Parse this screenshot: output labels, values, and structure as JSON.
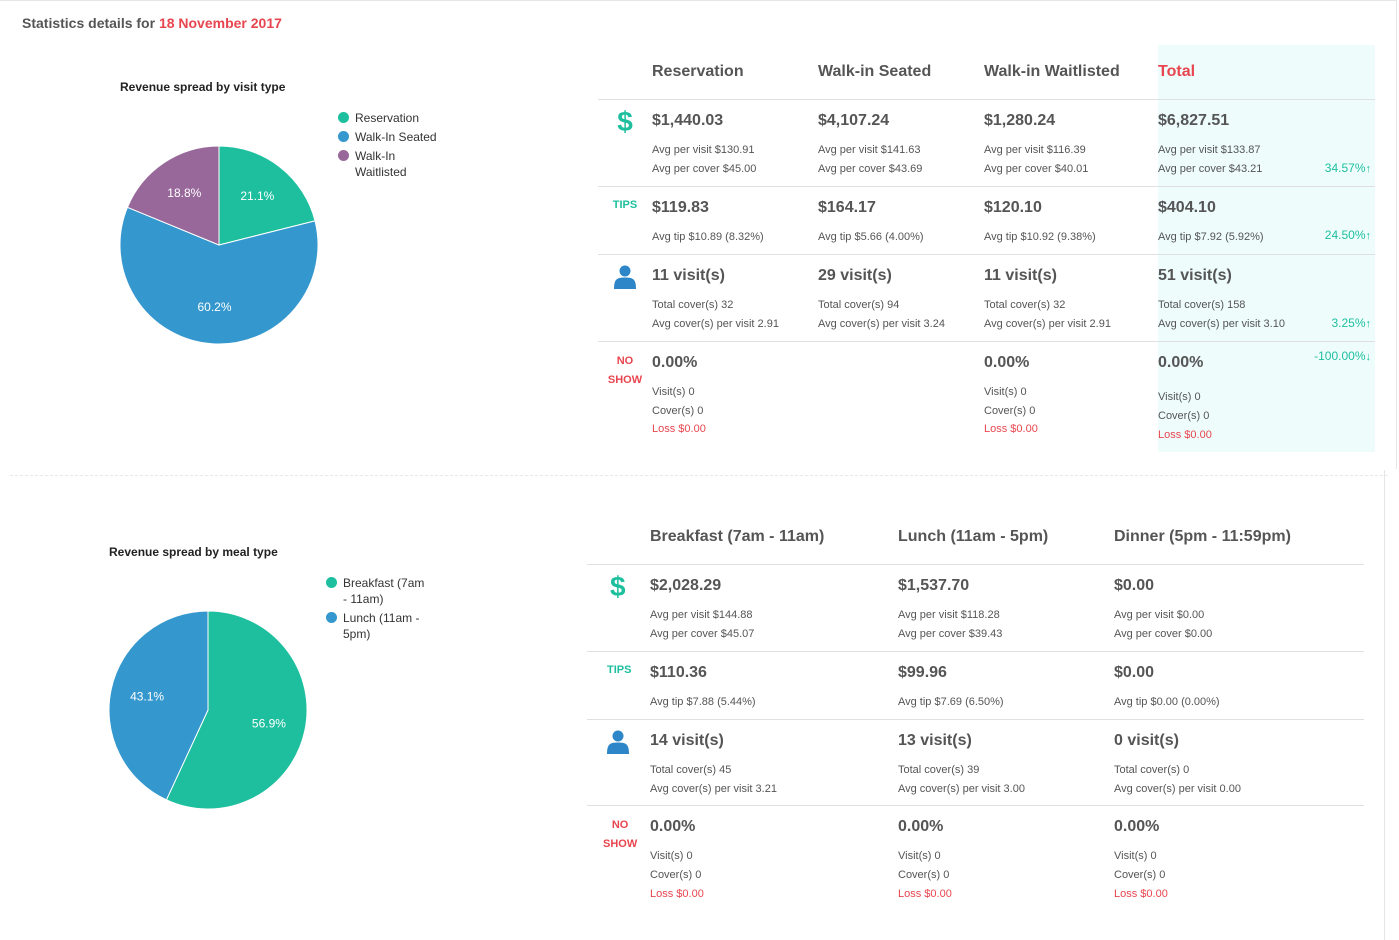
{
  "header": {
    "title_prefix": "Statistics details for",
    "date": "18 November 2017"
  },
  "colors": {
    "teal": "#1dbf9e",
    "blue": "#3497cd",
    "purple": "#98689b",
    "red": "#e8464f",
    "total_bg": "#eefcfc"
  },
  "icons": {
    "revenue": "dollar-icon",
    "tips": "tips-icon",
    "visits": "user-icon",
    "noshow": "no-show-icon"
  },
  "visit_section": {
    "chart_data": {
      "type": "pie",
      "title": "Revenue spread by visit type",
      "slices": [
        {
          "label": "Reservation",
          "value": 21.1,
          "display": "21.1%",
          "color": "#1dbf9e"
        },
        {
          "label": "Walk-In Seated",
          "value": 60.2,
          "display": "60.2%",
          "color": "#3497cd"
        },
        {
          "label": "Walk-In Waitlisted",
          "value": 18.8,
          "display": "18.8%",
          "color": "#98689b"
        }
      ],
      "legend_position": "right"
    },
    "legend_labels": [
      "Reservation",
      "Walk-In Seated",
      "Walk-In\nWaitlisted"
    ],
    "table": {
      "columns": [
        "Reservation",
        "Walk-in Seated",
        "Walk-in Waitlisted",
        "Total"
      ],
      "row_labels": {
        "tips": "TIPS",
        "noshow_1": "NO",
        "noshow_2": "SHOW"
      },
      "revenue": [
        {
          "amount": "$1,440.03",
          "per_visit": "Avg per visit $130.91",
          "per_cover": "Avg per cover $45.00"
        },
        {
          "amount": "$4,107.24",
          "per_visit": "Avg per visit $141.63",
          "per_cover": "Avg per cover $43.69"
        },
        {
          "amount": "$1,280.24",
          "per_visit": "Avg per visit $116.39",
          "per_cover": "Avg per cover $40.01"
        },
        {
          "amount": "$6,827.51",
          "per_visit": "Avg per visit $133.87",
          "per_cover": "Avg per cover $43.21",
          "change": "34.57%",
          "direction": "up"
        }
      ],
      "tips": [
        {
          "amount": "$119.83",
          "avg": "Avg tip $10.89 (8.32%)"
        },
        {
          "amount": "$164.17",
          "avg": "Avg tip $5.66 (4.00%)"
        },
        {
          "amount": "$120.10",
          "avg": "Avg tip $10.92 (9.38%)"
        },
        {
          "amount": "$404.10",
          "avg": "Avg tip $7.92 (5.92%)",
          "change": "24.50%",
          "direction": "up"
        }
      ],
      "visits": [
        {
          "count": "11 visit(s)",
          "covers": "Total cover(s) 32",
          "avg": "Avg cover(s) per visit 2.91"
        },
        {
          "count": "29 visit(s)",
          "covers": "Total cover(s) 94",
          "avg": "Avg cover(s) per visit 3.24"
        },
        {
          "count": "11 visit(s)",
          "covers": "Total cover(s) 32",
          "avg": "Avg cover(s) per visit 2.91"
        },
        {
          "count": "51 visit(s)",
          "covers": "Total cover(s) 158",
          "avg": "Avg cover(s) per visit 3.10",
          "change": "3.25%",
          "direction": "up"
        }
      ],
      "noshow": [
        {
          "pct": "0.00%",
          "visits": "Visit(s) 0",
          "covers": "Cover(s) 0",
          "loss": "Loss $0.00"
        },
        null,
        {
          "pct": "0.00%",
          "visits": "Visit(s) 0",
          "covers": "Cover(s) 0",
          "loss": "Loss $0.00"
        },
        {
          "pct": "0.00%",
          "visits": "Visit(s) 0",
          "covers": "Cover(s) 0",
          "loss": "Loss $0.00",
          "change": "-100.00%",
          "direction": "down"
        }
      ]
    }
  },
  "meal_section": {
    "chart_data": {
      "type": "pie",
      "title": "Revenue spread by meal type",
      "slices": [
        {
          "label": "Breakfast (7am - 11am)",
          "value": 56.9,
          "display": "56.9%",
          "color": "#1dbf9e"
        },
        {
          "label": "Lunch (11am - 5pm)",
          "value": 43.1,
          "display": "43.1%",
          "color": "#3497cd"
        }
      ],
      "legend_position": "right"
    },
    "legend_labels": [
      "Breakfast (7am\n- 11am)",
      "Lunch (11am -\n5pm)"
    ],
    "table": {
      "columns": [
        "Breakfast (7am - 11am)",
        "Lunch (11am - 5pm)",
        "Dinner (5pm - 11:59pm)"
      ],
      "row_labels": {
        "tips": "TIPS",
        "noshow_1": "NO",
        "noshow_2": "SHOW"
      },
      "revenue": [
        {
          "amount": "$2,028.29",
          "per_visit": "Avg per visit $144.88",
          "per_cover": "Avg per cover $45.07"
        },
        {
          "amount": "$1,537.70",
          "per_visit": "Avg per visit $118.28",
          "per_cover": "Avg per cover $39.43"
        },
        {
          "amount": "$0.00",
          "per_visit": "Avg per visit $0.00",
          "per_cover": "Avg per cover $0.00"
        }
      ],
      "tips": [
        {
          "amount": "$110.36",
          "avg": "Avg tip $7.88 (5.44%)"
        },
        {
          "amount": "$99.96",
          "avg": "Avg tip $7.69 (6.50%)"
        },
        {
          "amount": "$0.00",
          "avg": "Avg tip $0.00 (0.00%)"
        }
      ],
      "visits": [
        {
          "count": "14 visit(s)",
          "covers": "Total cover(s) 45",
          "avg": "Avg cover(s) per visit 3.21"
        },
        {
          "count": "13 visit(s)",
          "covers": "Total cover(s) 39",
          "avg": "Avg cover(s) per visit 3.00"
        },
        {
          "count": "0 visit(s)",
          "covers": "Total cover(s) 0",
          "avg": "Avg cover(s) per visit 0.00"
        }
      ],
      "noshow": [
        {
          "pct": "0.00%",
          "visits": "Visit(s) 0",
          "covers": "Cover(s) 0",
          "loss": "Loss $0.00"
        },
        {
          "pct": "0.00%",
          "visits": "Visit(s) 0",
          "covers": "Cover(s) 0",
          "loss": "Loss $0.00"
        },
        {
          "pct": "0.00%",
          "visits": "Visit(s) 0",
          "covers": "Cover(s) 0",
          "loss": "Loss $0.00"
        }
      ]
    }
  }
}
